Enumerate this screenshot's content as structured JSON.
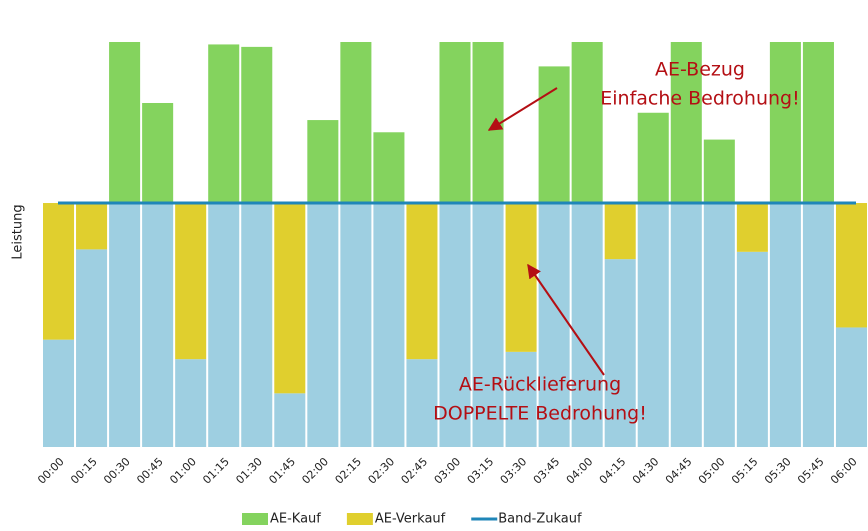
{
  "chart_data": {
    "type": "stacked-bar",
    "y_label": "Leistung",
    "categories": [
      "00:00",
      "00:15",
      "00:30",
      "00:45",
      "01:00",
      "01:15",
      "01:30",
      "01:45",
      "02:00",
      "02:15",
      "02:30",
      "02:45",
      "03:00",
      "03:15",
      "03:30",
      "03:45",
      "04:00",
      "04:15",
      "04:30",
      "04:45",
      "05:00",
      "05:15",
      "05:30",
      "05:45",
      "06:00"
    ],
    "ylim": [
      0,
      166
    ],
    "series": [
      {
        "color": "#9ecfe1",
        "values": [
          44,
          81,
          100,
          100,
          36,
          100,
          100,
          22,
          100,
          100,
          100,
          36,
          100,
          100,
          39,
          100,
          100,
          77,
          100,
          100,
          100,
          80,
          100,
          100,
          49
        ]
      },
      {
        "name": "AE-Kauf",
        "color": "#84d35e",
        "values": [
          0,
          0,
          66,
          41,
          0,
          65,
          64,
          0,
          34,
          66,
          29,
          0,
          66,
          66,
          0,
          56,
          66,
          0,
          37,
          66,
          26,
          0,
          66,
          66,
          0
        ]
      },
      {
        "name": "AE-Verkauf",
        "color": "#e0cf2e",
        "values": [
          56,
          19,
          0,
          0,
          64,
          0,
          0,
          78,
          0,
          0,
          0,
          64,
          0,
          0,
          61,
          0,
          0,
          23,
          0,
          0,
          0,
          20,
          0,
          0,
          51
        ]
      }
    ],
    "line": {
      "name": "Band-Zukauf",
      "color": "#1f86b8",
      "value": 100
    },
    "annotations": [
      {
        "lines": [
          "AE-Bezug",
          "Einfache Bedrohung!"
        ]
      },
      {
        "lines": [
          "AE-Rücklieferung",
          "DOPPELTE Bedrohung!"
        ]
      }
    ]
  }
}
